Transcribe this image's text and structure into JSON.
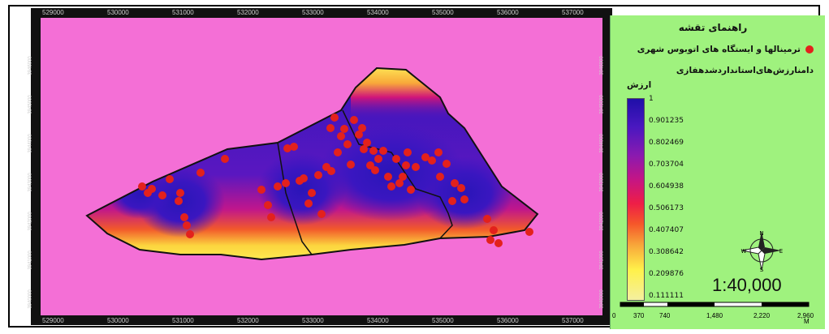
{
  "map": {
    "x_ticks": [
      "529000",
      "530000",
      "531000",
      "532000",
      "533000",
      "534000",
      "535000",
      "536000",
      "537000"
    ],
    "y_ticks": [
      "3946000",
      "3945000",
      "3944000",
      "3943000",
      "3942000",
      "3941000",
      "3940000"
    ]
  },
  "legend": {
    "title": "راهنمای تقشه",
    "point_label": "ترمینالها و ایستگاه های اتوبوس شهری",
    "layer_title": "دامنارزش‌های‌استانداردشدهفازی",
    "value_header": "ارزش",
    "ramp_labels": [
      "1",
      "0.901235",
      "0.802469",
      "0.703704",
      "0.604938",
      "0.506173",
      "0.407407",
      "0.308642",
      "0.209876",
      "0.111111"
    ],
    "colors": {
      "point": "#e3211c",
      "background": "#f46fd6",
      "legend_bg": "#9ff27e"
    }
  },
  "scale": {
    "ratio": "1:40,000",
    "bar_labels": [
      "0",
      "370",
      "740",
      "1,480",
      "2,220",
      "2,960"
    ],
    "unit": "M"
  },
  "compass": {
    "icon": "compass-rose-icon",
    "n": "N",
    "s": "S",
    "e": "E",
    "w": "W"
  }
}
